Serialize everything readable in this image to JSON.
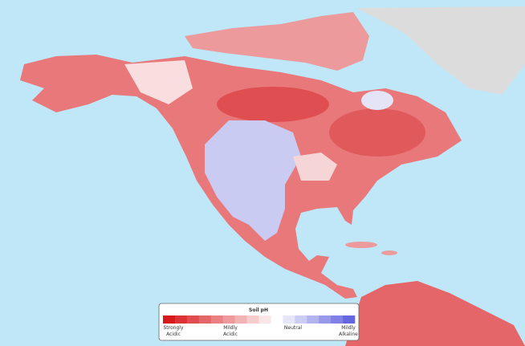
{
  "legend": {
    "title": "Soil pH",
    "labels": [
      [
        "Strongly",
        "Acidic"
      ],
      [
        "Mildly",
        "Acidic"
      ],
      [
        "Neutral"
      ],
      [
        "Mildly",
        "Alkaline"
      ]
    ],
    "colors": [
      "#d7191c",
      "#dc3336",
      "#e04c4f",
      "#e56668",
      "#ea8082",
      "#ee999b",
      "#f2b3b4",
      "#f6cccd",
      "#fae6e6",
      "#ffffff",
      "#e6e6fa",
      "#ccccf4",
      "#b3b3ef",
      "#9999ea",
      "#8080e5",
      "#6666e0"
    ]
  }
}
